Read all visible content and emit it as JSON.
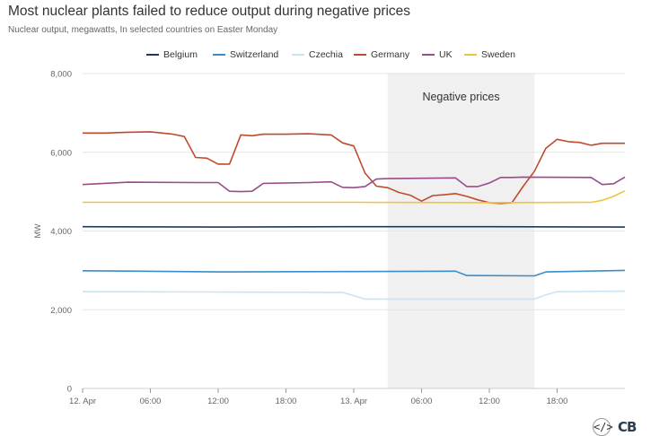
{
  "header": {
    "title": "Most nuclear plants failed to reduce output during negative prices",
    "subtitle": "Nuclear output, megawatts, In selected countries on Easter Monday"
  },
  "colors": {
    "Belgium": "#1b3a5c",
    "Switzerland": "#3a8dc8",
    "Czechia": "#c8e4f5",
    "Germany": "#c04a2e",
    "UK": "#9b4a8a",
    "Sweden": "#f0c43c",
    "shade": "#f0f0f0",
    "grid": "#e6e6e6"
  },
  "logo": {
    "text": "CB",
    "icon": "code-embed-icon",
    "icon_glyph": "</>"
  },
  "chart_data": {
    "type": "line",
    "ylabel": "MW",
    "ylim": [
      0,
      8000
    ],
    "yticks": [
      0,
      2000,
      4000,
      6000,
      8000
    ],
    "ytick_labels": [
      "0",
      "2,000",
      "4,000",
      "6,000",
      "8,000"
    ],
    "xlim": [
      0,
      48
    ],
    "xticks": [
      0,
      6,
      12,
      18,
      24,
      30,
      36,
      42
    ],
    "xtick_labels": [
      "12. Apr",
      "06:00",
      "12:00",
      "18:00",
      "13. Apr",
      "06:00",
      "12:00",
      "18:00"
    ],
    "annotation": {
      "label": "Negative prices",
      "x_start": 27,
      "x_end": 40
    },
    "legend": [
      "Belgium",
      "Switzerland",
      "Czechia",
      "Germany",
      "UK",
      "Sweden"
    ],
    "series": [
      {
        "name": "Belgium",
        "x": [
          0,
          12,
          24,
          36,
          48
        ],
        "y": [
          4110,
          4100,
          4110,
          4110,
          4100
        ]
      },
      {
        "name": "Switzerland",
        "x": [
          0,
          12,
          24,
          33,
          34,
          40,
          41,
          48
        ],
        "y": [
          2990,
          2960,
          2970,
          2980,
          2870,
          2860,
          2960,
          3000
        ]
      },
      {
        "name": "Czechia",
        "x": [
          0,
          12,
          23,
          24,
          25,
          40,
          41,
          42,
          48
        ],
        "y": [
          2460,
          2450,
          2440,
          2360,
          2270,
          2270,
          2380,
          2460,
          2470
        ]
      },
      {
        "name": "Germany",
        "x": [
          0,
          2,
          4,
          6,
          8,
          9,
          10,
          11,
          12,
          13,
          14,
          15,
          16,
          18,
          20,
          22,
          23,
          24,
          25,
          26,
          27,
          28,
          29,
          30,
          31,
          32,
          33,
          34,
          35,
          36,
          37,
          38,
          39,
          40,
          41,
          42,
          43,
          44,
          45,
          46,
          47,
          48
        ],
        "y": [
          6490,
          6490,
          6510,
          6520,
          6460,
          6400,
          5870,
          5850,
          5700,
          5700,
          6440,
          6420,
          6460,
          6460,
          6470,
          6440,
          6240,
          6160,
          5470,
          5140,
          5100,
          4980,
          4910,
          4760,
          4900,
          4920,
          4950,
          4880,
          4790,
          4720,
          4700,
          4720,
          5140,
          5520,
          6100,
          6330,
          6270,
          6250,
          6180,
          6230,
          6230,
          6230
        ]
      },
      {
        "name": "UK",
        "x": [
          0,
          4,
          10,
          12,
          13,
          14,
          15,
          16,
          20,
          22,
          23,
          24,
          25,
          26,
          27,
          33,
          34,
          35,
          36,
          37,
          38,
          39,
          45,
          46,
          47,
          48
        ],
        "y": [
          5180,
          5240,
          5230,
          5230,
          5010,
          5000,
          5010,
          5210,
          5230,
          5250,
          5110,
          5100,
          5130,
          5320,
          5330,
          5350,
          5130,
          5130,
          5220,
          5360,
          5360,
          5370,
          5360,
          5180,
          5200,
          5370
        ]
      },
      {
        "name": "Sweden",
        "x": [
          0,
          12,
          24,
          36,
          45,
          46,
          47,
          48
        ],
        "y": [
          4730,
          4730,
          4730,
          4720,
          4730,
          4780,
          4880,
          5020
        ]
      }
    ]
  }
}
